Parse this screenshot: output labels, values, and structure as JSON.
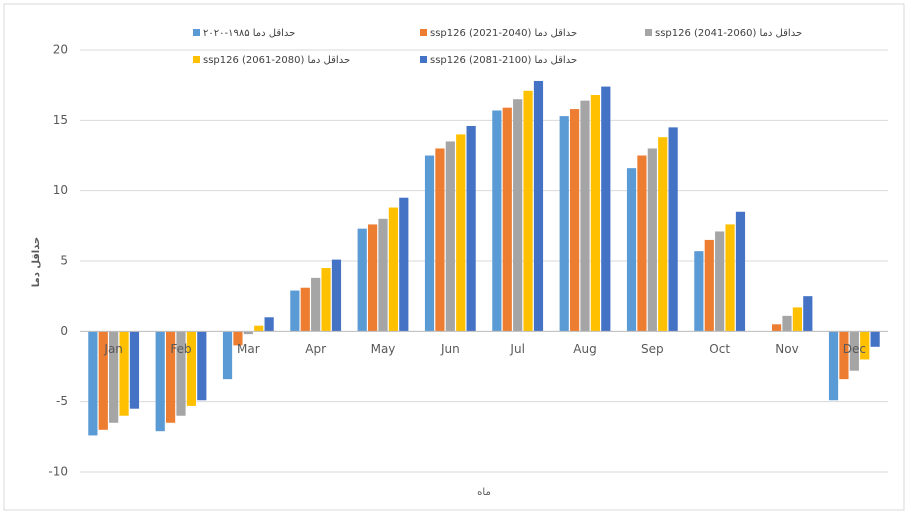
{
  "chart_data": {
    "type": "bar",
    "x_label": "ماه",
    "y_label": "حداقل دما",
    "categories": [
      "Jan",
      "Feb",
      "Mar",
      "Apr",
      "May",
      "Jun",
      "Jul",
      "Aug",
      "Sep",
      "Oct",
      "Nov",
      "Dec"
    ],
    "series": [
      {
        "name": "حداقل دما ۱۹۸۵-۲۰۲۰",
        "color": "#5b9bd5",
        "values": [
          -7.4,
          -7.1,
          -3.4,
          2.9,
          7.3,
          12.5,
          15.7,
          15.3,
          11.6,
          5.7,
          0.0,
          -4.9
        ]
      },
      {
        "name": "حداقل دما ssp126 (2021-2040)",
        "color": "#ed7d31",
        "values": [
          -7.0,
          -6.5,
          -1.0,
          3.1,
          7.6,
          13.0,
          15.9,
          15.8,
          12.5,
          6.5,
          0.5,
          -3.4
        ]
      },
      {
        "name": "حداقل دما ssp126 (2041-2060)",
        "color": "#a5a5a5",
        "values": [
          -6.5,
          -6.0,
          -0.2,
          3.8,
          8.0,
          13.5,
          16.5,
          16.4,
          13.0,
          7.1,
          1.1,
          -2.8
        ]
      },
      {
        "name": "حداقل دما ssp126 (2061-2080)",
        "color": "#ffc000",
        "values": [
          -6.0,
          -5.3,
          0.4,
          4.5,
          8.8,
          14.0,
          17.1,
          16.8,
          13.8,
          7.6,
          1.7,
          -2.0
        ]
      },
      {
        "name": "حداقل دما ssp126 (2081-2100)",
        "color": "#4472c4",
        "values": [
          -5.5,
          -4.9,
          1.0,
          5.1,
          9.5,
          14.6,
          17.8,
          17.4,
          14.5,
          8.5,
          2.5,
          -1.1
        ]
      }
    ],
    "ylim": [
      -10,
      20
    ],
    "yticks": [
      -10,
      -5,
      0,
      5,
      10,
      15,
      20
    ],
    "grid": true
  }
}
